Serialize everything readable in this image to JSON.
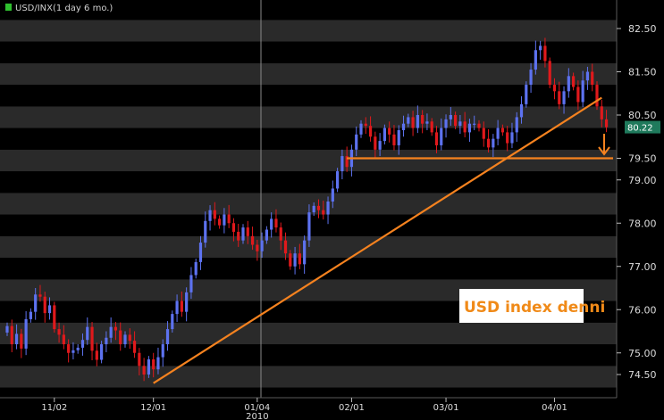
{
  "chart_data": {
    "type": "candlestick",
    "title": "USD/INX(1 day 6 mo.)",
    "ylim": [
      74.2,
      82.8
    ],
    "y_ticks": [
      "74.50",
      "75.00",
      "76.00",
      "77.00",
      "78.00",
      "79.00",
      "79.50",
      "80.50",
      "81.50",
      "82.50"
    ],
    "x_ticks": [
      {
        "label": "11/02",
        "sublabel": "",
        "index": 10
      },
      {
        "label": "12/01",
        "sublabel": "",
        "index": 31
      },
      {
        "label": "01/04",
        "sublabel": "2010",
        "index": 53
      },
      {
        "label": "02/01",
        "sublabel": "",
        "index": 73
      },
      {
        "label": "03/01",
        "sublabel": "",
        "index": 93
      },
      {
        "label": "04/01",
        "sublabel": "",
        "index": 116
      }
    ],
    "last_price": "80.22",
    "annotation": "USD index denni",
    "colors": {
      "up": "#5d72f0",
      "down": "#e0191c",
      "band_dark": "#000000",
      "band_light": "#2a2a2a",
      "trendline": "#f5821f",
      "last_badge": "#1f7a5c",
      "legend_marker": "#2fc02f"
    },
    "support_level": 79.5,
    "trendline": {
      "from": {
        "index": 31,
        "value": 74.3
      },
      "to": {
        "index": 126,
        "value": 80.9
      }
    },
    "closes": [
      75.62,
      75.2,
      75.44,
      75.1,
      75.78,
      75.95,
      76.35,
      76.3,
      75.92,
      76.1,
      75.55,
      75.42,
      75.2,
      75.0,
      75.06,
      75.12,
      75.3,
      75.6,
      75.05,
      74.84,
      75.2,
      75.35,
      75.6,
      75.52,
      75.2,
      75.42,
      75.28,
      75.0,
      74.7,
      74.5,
      74.85,
      74.62,
      74.9,
      75.2,
      75.55,
      75.9,
      76.2,
      75.95,
      76.4,
      76.8,
      77.1,
      77.55,
      78.05,
      78.3,
      78.1,
      77.95,
      78.2,
      78.0,
      77.8,
      77.6,
      77.9,
      77.7,
      77.5,
      77.35,
      77.6,
      77.85,
      78.1,
      77.9,
      77.6,
      77.3,
      77.0,
      77.3,
      77.05,
      77.6,
      78.25,
      78.4,
      78.3,
      78.2,
      78.5,
      78.8,
      79.2,
      79.55,
      79.3,
      79.7,
      80.05,
      80.3,
      80.25,
      80.0,
      79.7,
      79.9,
      80.2,
      80.05,
      79.8,
      80.15,
      80.3,
      80.45,
      80.2,
      80.5,
      80.3,
      80.35,
      80.1,
      79.8,
      80.2,
      80.4,
      80.5,
      80.25,
      80.35,
      80.1,
      80.3,
      80.3,
      80.2,
      79.95,
      79.75,
      79.95,
      80.2,
      80.1,
      79.85,
      80.1,
      80.45,
      80.75,
      81.2,
      81.55,
      82.0,
      82.1,
      81.75,
      81.2,
      81.05,
      80.75,
      81.05,
      81.4,
      81.15,
      80.8,
      81.3,
      81.5,
      81.2,
      80.7,
      80.4,
      80.22
    ]
  }
}
